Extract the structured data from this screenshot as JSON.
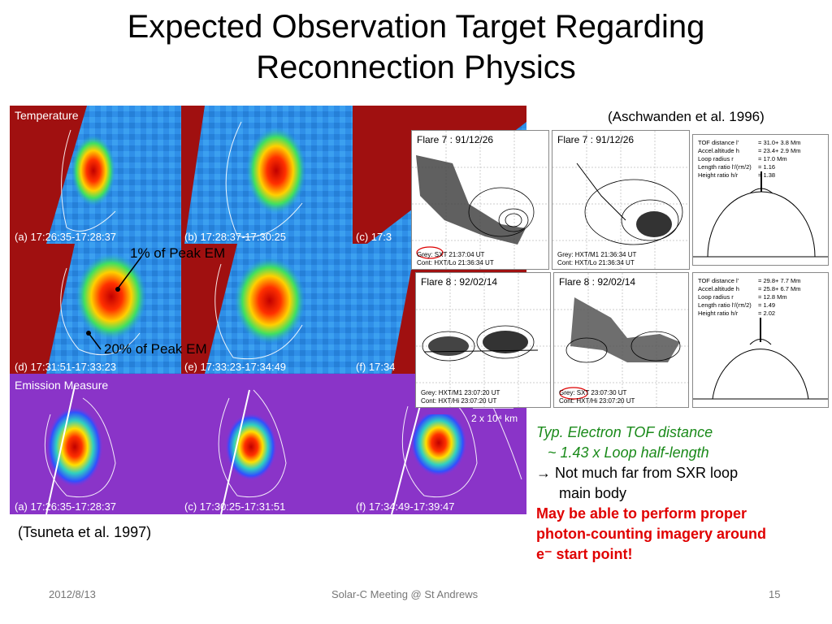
{
  "slide": {
    "title_line1": "Expected Observation Target Regarding",
    "title_line2": "Reconnection Physics",
    "ref_left": "(Tsuneta et al. 1997)",
    "ref_right": "(Aschwanden et al. 1996)"
  },
  "tsuneta": {
    "temperature_label": "Temperature",
    "em_label": "Emission Measure",
    "panel_a": "(a) 17:26:35-17:28:37",
    "panel_b": "(b) 17:28:37-17:30:25",
    "panel_c_top": "(c) 17:3",
    "panel_d": "(d) 17:31:51-17:33:23",
    "panel_e": "(e) 17:33:23-17:34:49",
    "panel_f_mid": "(f) 17:34",
    "em_a": "(a) 17:26:35-17:28:37",
    "em_c": "(c) 17:30:25-17:31:51",
    "em_f": "(f) 17:34:49-17:39:47",
    "scale": "2 x 10⁴ km",
    "annot_1": "1% of Peak EM",
    "annot_20": "20% of Peak EM"
  },
  "aschwanden": {
    "flare7_title": "Flare  7 : 91/12/26",
    "flare8_title": "Flare  8 : 92/02/14",
    "f7a_cap1": "Grey: SXT  21:37:04 UT",
    "f7a_cap2": "Cont: HXT/Lo  21:36:34 UT",
    "f7b_cap1": "Grey: HXT/M1  21:36:34 UT",
    "f7b_cap2": "Cont: HXT/Lo  21:36:34 UT",
    "f8a_cap1": "Grey: HXT/M1  23:07:20 UT",
    "f8a_cap2": "Cont: HXT/Hi  23:07:20 UT",
    "f8b_cap1": "Grey: SXT  23:07:30 UT",
    "f8b_cap2": "Cont: HXT/Hi  23:07:20 UT",
    "tof1": [
      "TOF distance l'",
      "Accel.altitude h",
      "Loop radius r",
      "Length ratio l'/(rπ/2)",
      "Height ratio h/r"
    ],
    "tof1_vals": [
      "= 31.0+  3.8 Mm",
      "= 23.4+  2.9 Mm",
      "= 17.0 Mm",
      "= 1.16",
      "= 1.38"
    ],
    "tof2": [
      "TOF distance l'",
      "Accel.altitude h",
      "Loop radius r",
      "Length ratio l'/(rπ/2)",
      "Height ratio h/r"
    ],
    "tof2_vals": [
      "= 29.8+  7.7 Mm",
      "= 25.8+  6.7 Mm",
      "= 12.8 Mm",
      "= 1.49",
      "= 2.02"
    ]
  },
  "notes": {
    "line1": "Typ. Electron TOF distance",
    "line2": "~ 1.43 x Loop half-length",
    "line3": "→ Not much far from SXR loop",
    "line4": "main body",
    "red1": "May be able to perform proper",
    "red2": "photon-counting imagery around",
    "red3": "e⁻ start point!"
  },
  "footer": {
    "date": "2012/8/13",
    "center": "Solar-C Meeting @ St Andrews",
    "page": "15"
  }
}
